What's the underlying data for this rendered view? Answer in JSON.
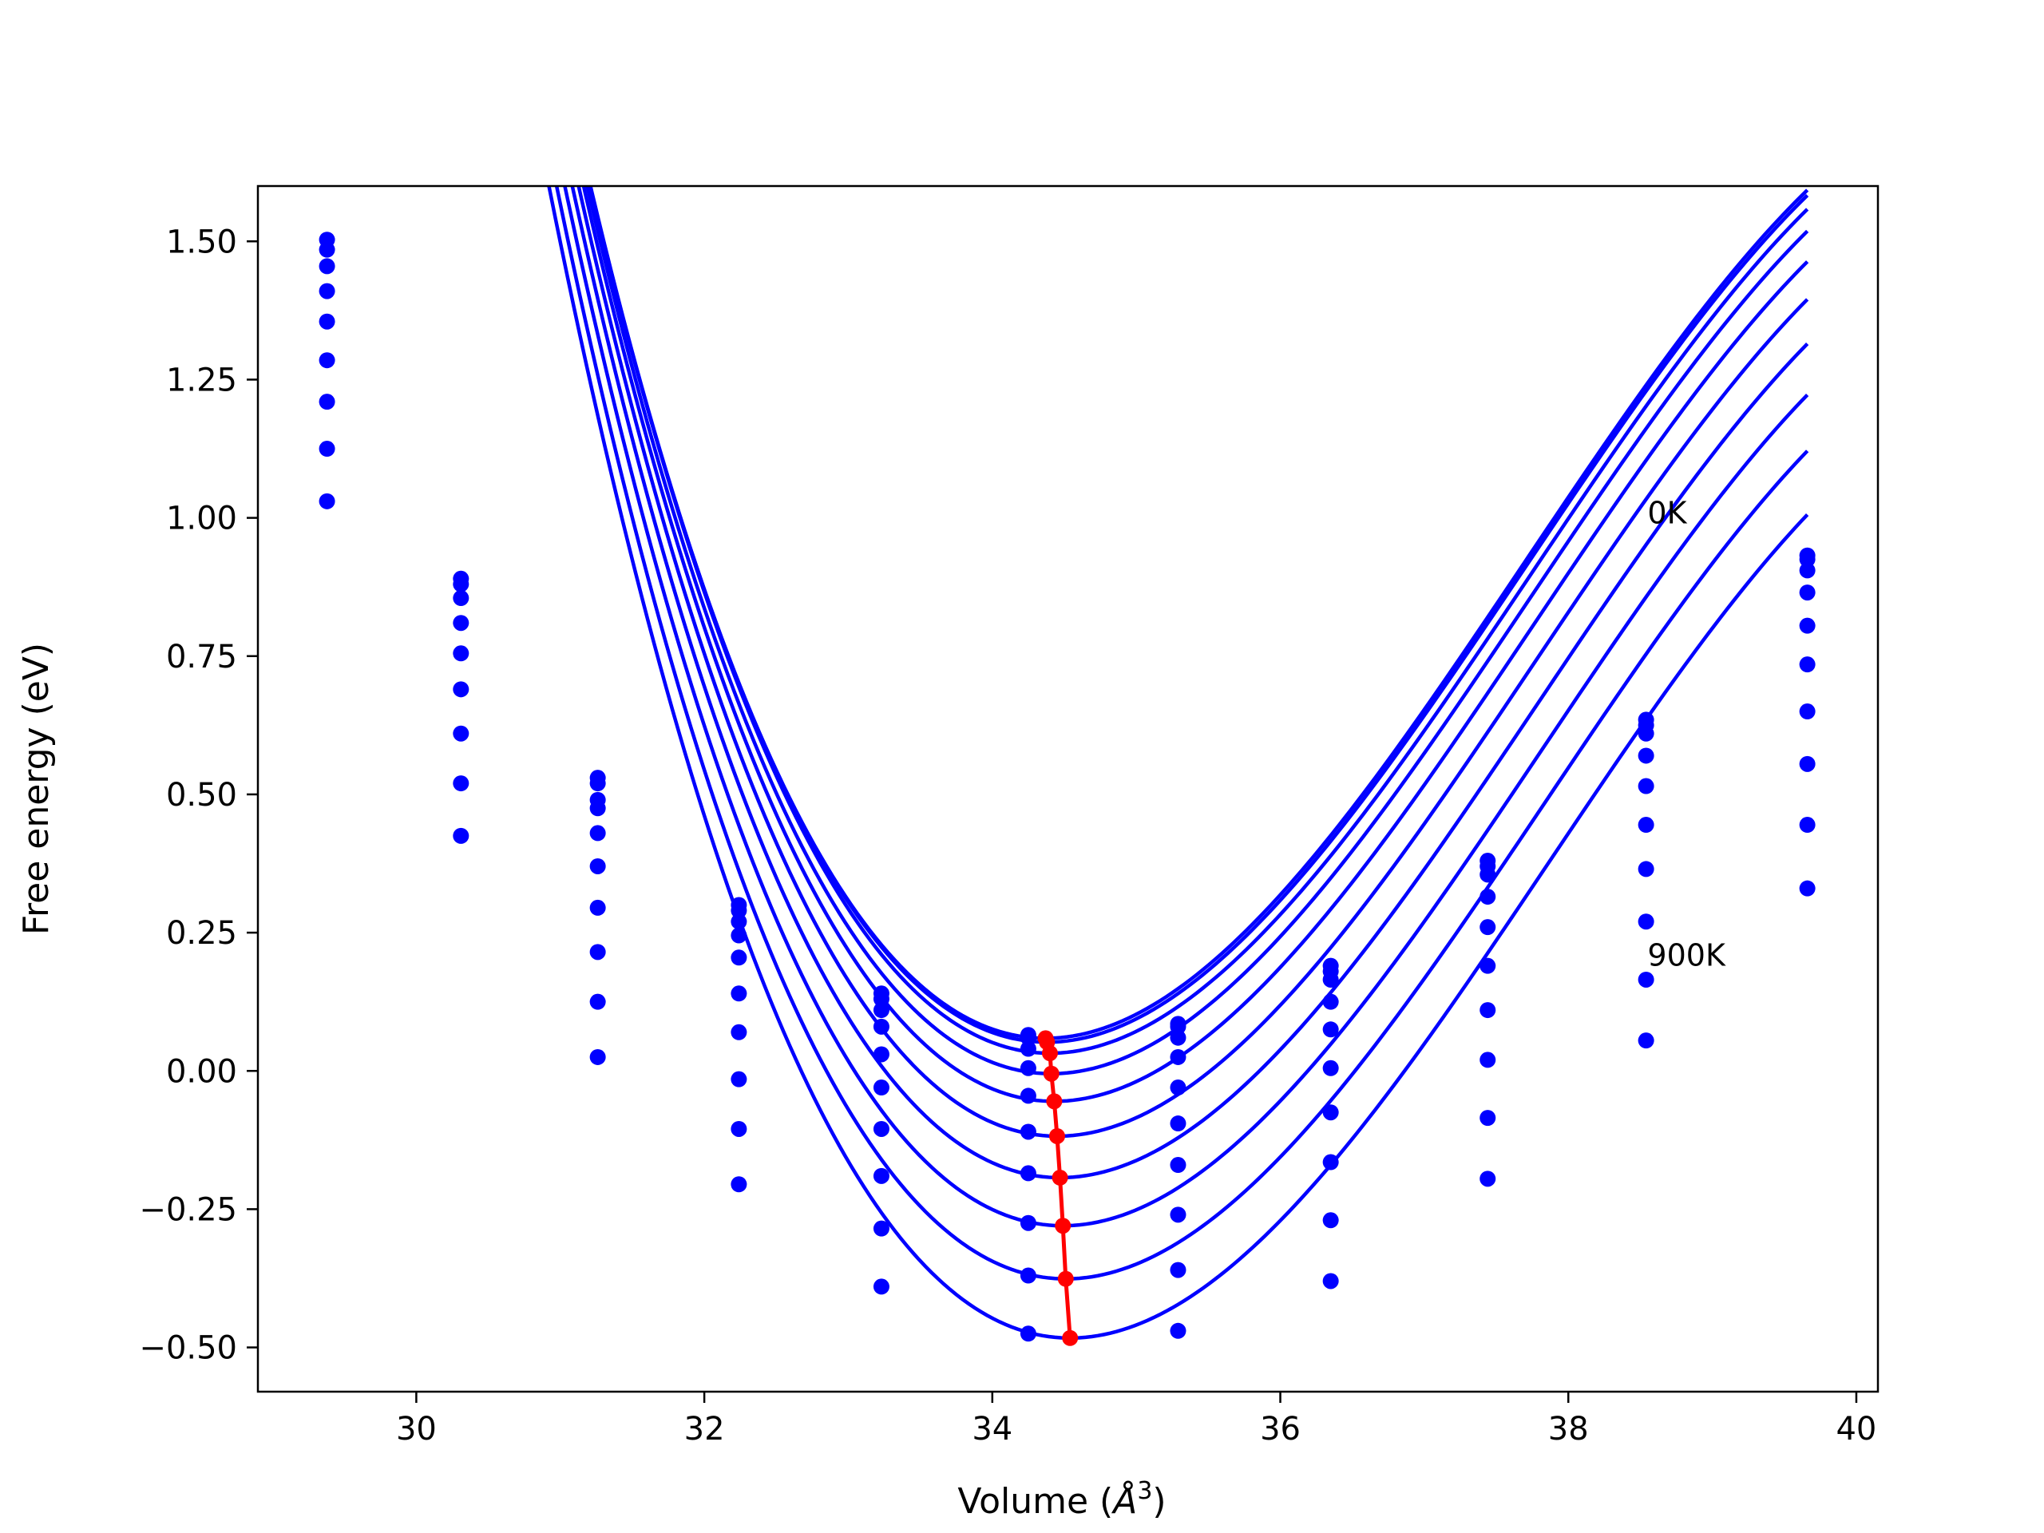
{
  "chart_data": {
    "type": "line",
    "xlabel_main": "Volume (",
    "xlabel_unit": "Å",
    "xlabel_sup": "3",
    "xlabel_close": ")",
    "ylabel": "Free energy (eV)",
    "xlim": [
      28.9,
      40.15
    ],
    "ylim": [
      -0.58,
      1.6
    ],
    "xticks": [
      30,
      32,
      34,
      36,
      38,
      40
    ],
    "yticks": [
      1.5,
      1.25,
      1.0,
      0.75,
      0.5,
      0.25,
      0.0,
      -0.25,
      -0.5
    ],
    "ytick_labels": [
      "1.50",
      "1.25",
      "1.00",
      "0.75",
      "0.50",
      "0.25",
      "0.00",
      "−0.25",
      "−0.50"
    ],
    "xtick_labels": [
      "30",
      "32",
      "34",
      "36",
      "38",
      "40"
    ],
    "annotations": [
      {
        "text": "0K",
        "x": 38.55,
        "y": 0.99
      },
      {
        "text": "900K",
        "x": 38.55,
        "y": 0.19
      }
    ],
    "volumes": [
      29.38,
      30.31,
      31.26,
      32.24,
      33.23,
      34.25,
      35.29,
      36.35,
      37.44,
      38.54,
      39.66
    ],
    "fit_curves": [
      {
        "e0": 0.059,
        "v0": 34.37,
        "b": 0.1167,
        "c": 0.0117
      },
      {
        "e0": 0.052,
        "v0": 34.38,
        "b": 0.1167,
        "c": 0.0117
      },
      {
        "e0": 0.032,
        "v0": 34.4,
        "b": 0.1167,
        "c": 0.0117
      },
      {
        "e0": -0.005,
        "v0": 34.41,
        "b": 0.1167,
        "c": 0.0117
      },
      {
        "e0": -0.055,
        "v0": 34.43,
        "b": 0.1167,
        "c": 0.0117
      },
      {
        "e0": -0.118,
        "v0": 34.45,
        "b": 0.1167,
        "c": 0.0117
      },
      {
        "e0": -0.193,
        "v0": 34.47,
        "b": 0.1167,
        "c": 0.0117
      },
      {
        "e0": -0.28,
        "v0": 34.49,
        "b": 0.1167,
        "c": 0.0117
      },
      {
        "e0": -0.376,
        "v0": 34.51,
        "b": 0.1167,
        "c": 0.0117
      },
      {
        "e0": -0.483,
        "v0": 34.54,
        "b": 0.1167,
        "c": 0.0117
      }
    ],
    "series_points": [
      [
        1.503,
        0.89,
        0.53,
        0.3,
        0.14,
        0.065,
        0.085,
        0.19,
        0.38,
        0.635,
        0.932
      ],
      [
        1.485,
        0.88,
        0.52,
        0.29,
        0.13,
        0.06,
        0.08,
        0.18,
        0.37,
        0.625,
        0.925
      ],
      [
        1.455,
        0.855,
        0.49,
        0.27,
        0.11,
        0.04,
        0.06,
        0.165,
        0.355,
        0.61,
        0.905
      ],
      [
        1.41,
        0.81,
        0.475,
        0.245,
        0.08,
        0.005,
        0.025,
        0.125,
        0.315,
        0.57,
        0.865
      ],
      [
        1.355,
        0.755,
        0.43,
        0.205,
        0.03,
        -0.045,
        -0.03,
        0.075,
        0.26,
        0.515,
        0.805
      ],
      [
        1.285,
        0.69,
        0.37,
        0.14,
        -0.03,
        -0.11,
        -0.095,
        0.005,
        0.19,
        0.445,
        0.735
      ],
      [
        1.21,
        0.61,
        0.295,
        0.07,
        -0.105,
        -0.185,
        -0.17,
        -0.075,
        0.11,
        0.365,
        0.65
      ],
      [
        1.125,
        0.52,
        0.215,
        -0.015,
        -0.19,
        -0.275,
        -0.26,
        -0.165,
        0.02,
        0.27,
        0.555
      ],
      [
        1.03,
        0.425,
        0.125,
        -0.105,
        -0.285,
        -0.37,
        -0.36,
        -0.27,
        -0.085,
        0.165,
        0.445
      ],
      [
        null,
        null,
        0.025,
        -0.205,
        -0.39,
        -0.475,
        -0.47,
        -0.38,
        -0.195,
        0.055,
        0.33
      ]
    ],
    "minima": [
      {
        "x": 34.37,
        "y": 0.059
      },
      {
        "x": 34.38,
        "y": 0.052
      },
      {
        "x": 34.4,
        "y": 0.032
      },
      {
        "x": 34.41,
        "y": -0.005
      },
      {
        "x": 34.43,
        "y": -0.055
      },
      {
        "x": 34.45,
        "y": -0.118
      },
      {
        "x": 34.47,
        "y": -0.193
      },
      {
        "x": 34.49,
        "y": -0.28
      },
      {
        "x": 34.51,
        "y": -0.376
      },
      {
        "x": 34.54,
        "y": -0.483
      }
    ],
    "grid": false,
    "colors": {
      "fit": "#0000ff",
      "points": "#0000ff",
      "minima": "#ff0000",
      "axes": "#000000"
    }
  }
}
